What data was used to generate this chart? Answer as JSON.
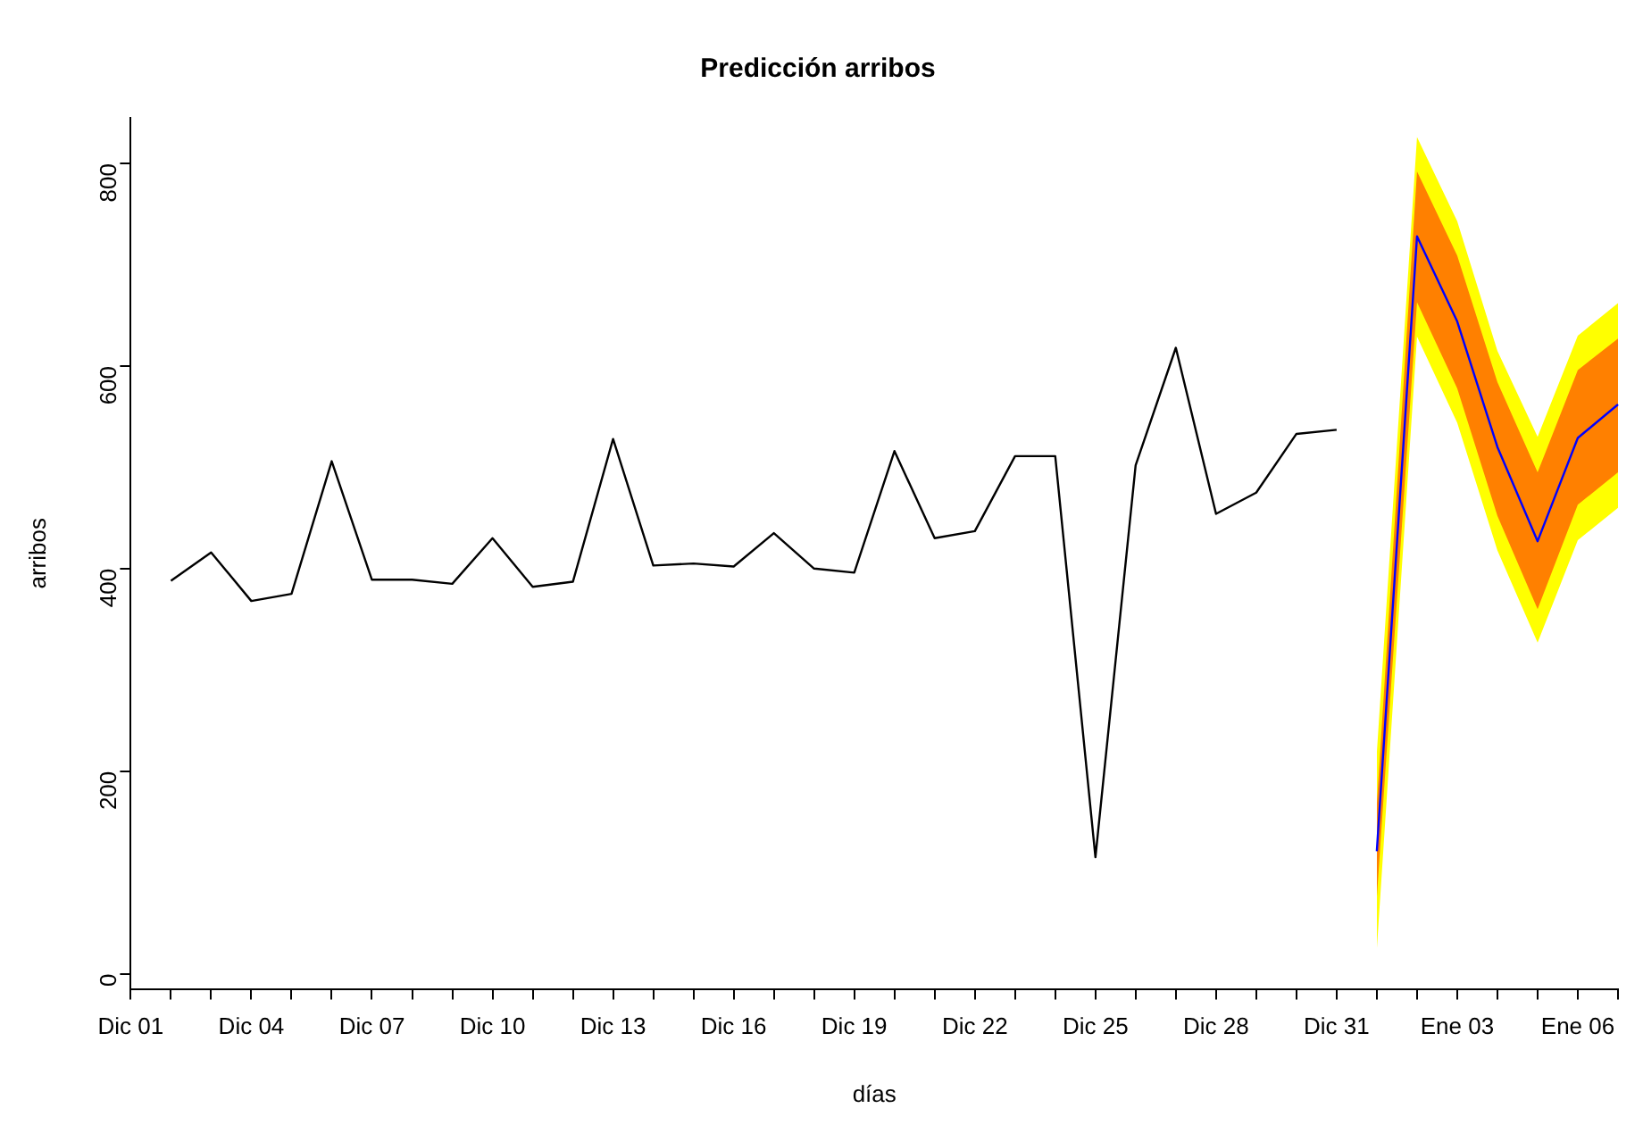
{
  "chart_data": {
    "type": "line",
    "title": "Predicción arribos",
    "xlabel": "días",
    "ylabel": "arribos",
    "categories": [
      "Dic 01",
      null,
      null,
      "Dic 04",
      null,
      null,
      "Dic 07",
      null,
      null,
      "Dic 10",
      null,
      null,
      "Dic 13",
      null,
      null,
      "Dic 16",
      null,
      null,
      "Dic 19",
      null,
      null,
      "Dic 22",
      null,
      null,
      "Dic 25",
      null,
      null,
      "Dic 28",
      null,
      null,
      "Dic 31",
      null,
      null,
      "Ene 03",
      null,
      null,
      "Ene 06",
      null
    ],
    "ylim": [
      -15,
      845
    ],
    "yticks": [
      0,
      200,
      400,
      600,
      800
    ],
    "grid": false,
    "legend": false,
    "marker": "none",
    "line_style": "solid",
    "series": [
      {
        "color": "#000000",
        "values": [
          null,
          388,
          416,
          368,
          375,
          506,
          389,
          389,
          385,
          430,
          382,
          387,
          528,
          403,
          405,
          402,
          435,
          400,
          396,
          516,
          430,
          437,
          511,
          511,
          115,
          502,
          618,
          454,
          475,
          533,
          537,
          null,
          null,
          null,
          null,
          null,
          null,
          null
        ]
      },
      {
        "type": "area",
        "color": "#ffff00",
        "values": [
          null,
          null,
          null,
          null,
          null,
          null,
          null,
          null,
          null,
          null,
          null,
          null,
          null,
          null,
          null,
          null,
          null,
          null,
          null,
          null,
          null,
          null,
          null,
          null,
          null,
          null,
          null,
          null,
          null,
          null,
          null,
          null,
          null,
          null,
          null,
          null,
          null,
          null
        ],
        "lower": [
          null,
          null,
          null,
          null,
          null,
          null,
          null,
          null,
          null,
          null,
          null,
          null,
          null,
          null,
          null,
          null,
          null,
          null,
          null,
          null,
          null,
          null,
          null,
          null,
          null,
          null,
          null,
          null,
          null,
          null,
          null,
          24,
          629,
          544,
          418,
          327,
          428,
          460
        ],
        "upper": [
          null,
          null,
          null,
          null,
          null,
          null,
          null,
          null,
          null,
          null,
          null,
          null,
          null,
          null,
          null,
          null,
          null,
          null,
          null,
          null,
          null,
          null,
          null,
          null,
          null,
          null,
          null,
          null,
          null,
          null,
          null,
          218,
          826,
          743,
          615,
          530,
          630,
          662
        ]
      },
      {
        "type": "area",
        "color": "#ff8000",
        "values": [
          null,
          null,
          null,
          null,
          null,
          null,
          null,
          null,
          null,
          null,
          null,
          null,
          null,
          null,
          null,
          null,
          null,
          null,
          null,
          null,
          null,
          null,
          null,
          null,
          null,
          null,
          null,
          null,
          null,
          null,
          null,
          null,
          null,
          null,
          null,
          null,
          null,
          null
        ],
        "lower": [
          null,
          null,
          null,
          null,
          null,
          null,
          null,
          null,
          null,
          null,
          null,
          null,
          null,
          null,
          null,
          null,
          null,
          null,
          null,
          null,
          null,
          null,
          null,
          null,
          null,
          null,
          null,
          null,
          null,
          null,
          null,
          75,
          663,
          578,
          452,
          360,
          463,
          495
        ],
        "upper": [
          null,
          null,
          null,
          null,
          null,
          null,
          null,
          null,
          null,
          null,
          null,
          null,
          null,
          null,
          null,
          null,
          null,
          null,
          null,
          null,
          null,
          null,
          null,
          null,
          null,
          null,
          null,
          null,
          null,
          null,
          null,
          167,
          792,
          709,
          584,
          495,
          596,
          627
        ]
      },
      {
        "color": "#0000ff",
        "values": [
          null,
          null,
          null,
          null,
          null,
          null,
          null,
          null,
          null,
          null,
          null,
          null,
          null,
          null,
          null,
          null,
          null,
          null,
          null,
          null,
          null,
          null,
          null,
          null,
          null,
          null,
          null,
          null,
          null,
          null,
          null,
          121,
          728,
          644,
          520,
          427,
          529,
          562
        ]
      }
    ]
  }
}
